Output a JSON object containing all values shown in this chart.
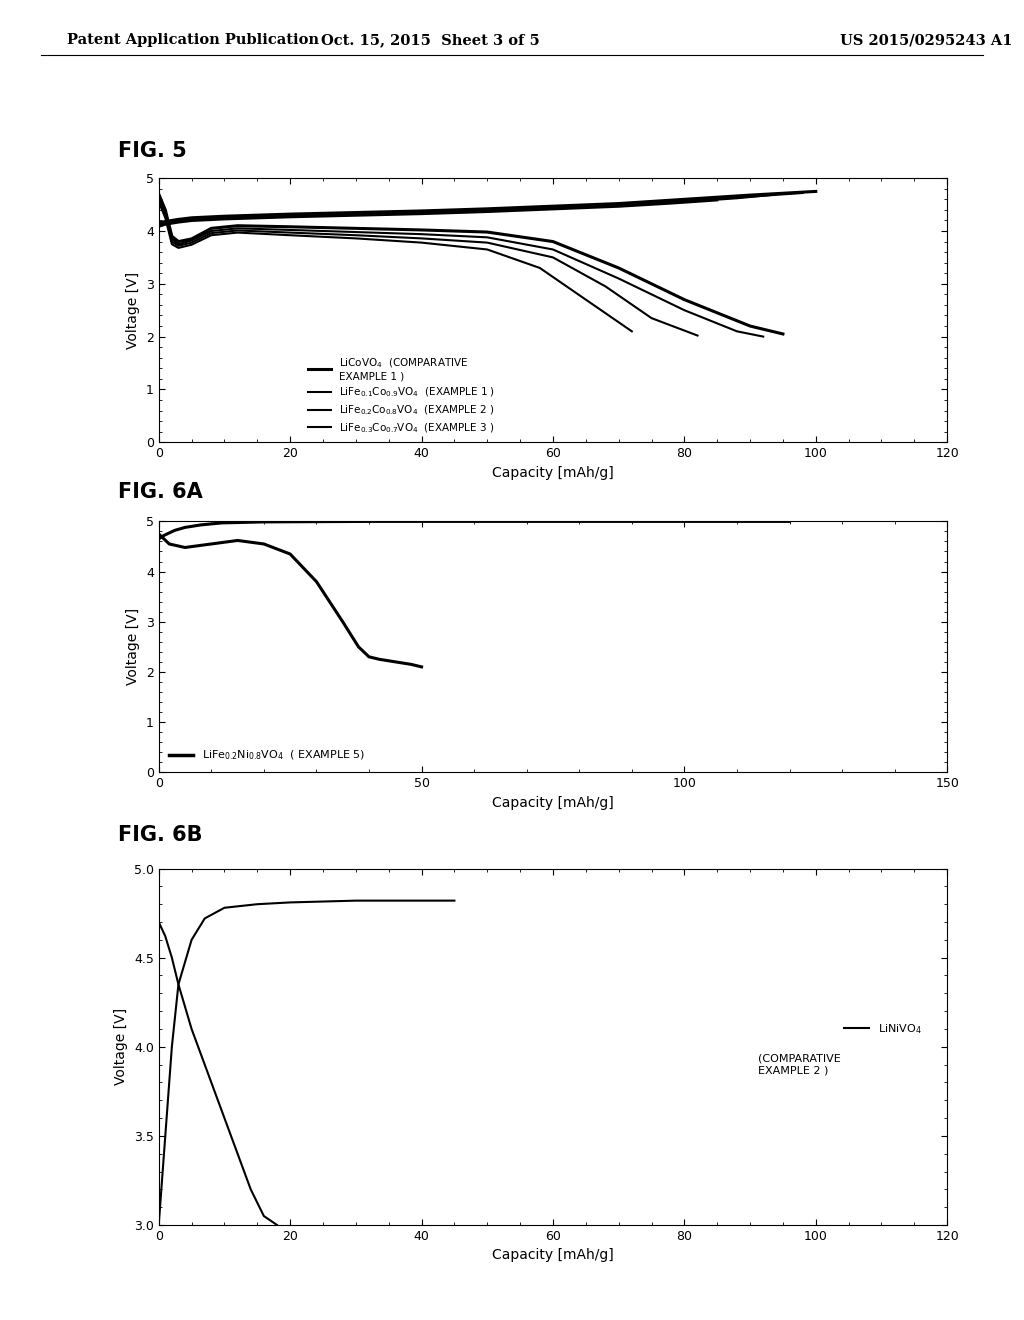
{
  "header_left": "Patent Application Publication",
  "header_mid": "Oct. 15, 2015  Sheet 3 of 5",
  "header_right": "US 2015/0295243 A1",
  "fig5_title": "FIG. 5",
  "fig6a_title": "FIG. 6A",
  "fig6b_title": "FIG. 6B",
  "background_color": "#ffffff",
  "text_color": "#000000",
  "fig5": {
    "xlabel": "Capacity [mAh/g]",
    "ylabel": "Voltage [V]",
    "xlim": [
      0,
      120
    ],
    "ylim": [
      0,
      5
    ],
    "xticks": [
      0,
      20,
      40,
      60,
      80,
      100,
      120
    ],
    "yticks": [
      0,
      1,
      2,
      3,
      4,
      5
    ]
  },
  "fig6a": {
    "xlabel": "Capacity [mAh/g]",
    "ylabel": "Voltage [V]",
    "xlim": [
      0,
      150
    ],
    "ylim": [
      0,
      5
    ],
    "xticks": [
      0,
      50,
      100,
      150
    ],
    "yticks": [
      0,
      1,
      2,
      3,
      4,
      5
    ]
  },
  "fig6b": {
    "xlabel": "Capacity [mAh/g]",
    "ylabel": "Voltage [V]",
    "xlim": [
      0,
      120
    ],
    "ylim": [
      3.0,
      5.0
    ],
    "xticks": [
      0,
      20,
      40,
      60,
      80,
      100,
      120
    ],
    "yticks": [
      3.0,
      3.5,
      4.0,
      4.5,
      5.0
    ]
  }
}
